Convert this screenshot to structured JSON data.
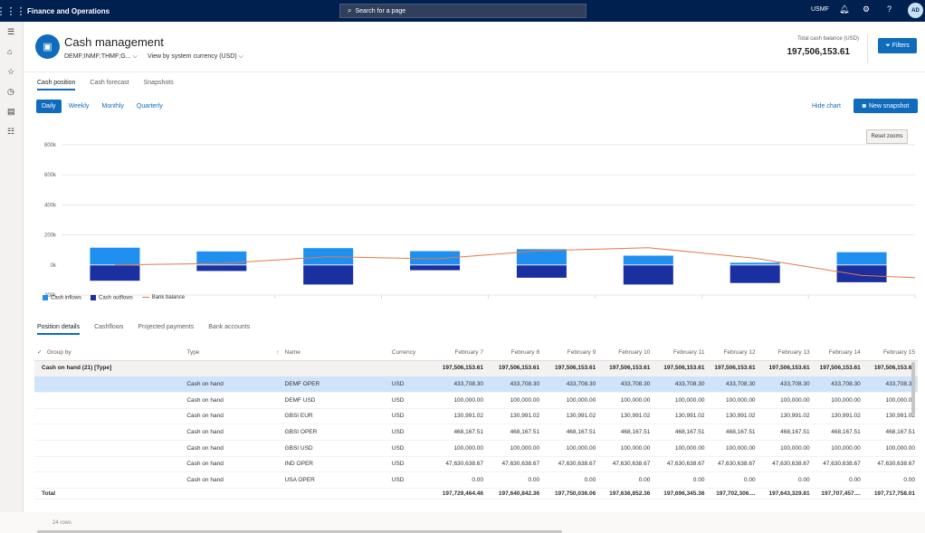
{
  "topbar": {
    "app_name": "Finance and Operations",
    "search_placeholder": "Search for a page",
    "company": "USMF",
    "avatar": "AD"
  },
  "header": {
    "title": "Cash management",
    "legal_entities": "DEMF;INMF;THMF;G...",
    "currency_view": "View by system currency (USD)",
    "total_label": "Total cash balance (USD)",
    "total_value": "197,506,153.61",
    "filters_label": "Filters"
  },
  "tabs": [
    {
      "label": "Cash position",
      "active": true
    },
    {
      "label": "Cash forecast"
    },
    {
      "label": "Snapshots"
    }
  ],
  "periods": [
    {
      "label": "Daily",
      "active": true
    },
    {
      "label": "Weekly"
    },
    {
      "label": "Monthly"
    },
    {
      "label": "Quarterly"
    }
  ],
  "hide_chart": "Hide chart",
  "new_snapshot": "New snapshot",
  "reset_zooms": "Reset zooms",
  "chart_data": {
    "type": "bar",
    "categories": [
      "February 7",
      "February 8",
      "February 9",
      "February 10",
      "February 11",
      "February 12",
      "February 13",
      "February 14"
    ],
    "ylim": [
      -200000,
      800000
    ],
    "yticks": [
      "800k",
      "600k",
      "400k",
      "200k",
      "0k",
      "-200k"
    ],
    "ytick_values": [
      800000,
      600000,
      400000,
      200000,
      0,
      -200000
    ],
    "series": [
      {
        "name": "Cash inflows",
        "color": "#1f8ff0",
        "values": [
          115000,
          90000,
          112000,
          92000,
          105000,
          62000,
          15000,
          85000
        ]
      },
      {
        "name": "Cash outflows",
        "color": "#1a2fa0",
        "values": [
          -105000,
          -40000,
          -130000,
          -35000,
          -85000,
          -130000,
          -120000,
          -115000
        ]
      },
      {
        "name": "Bank balance",
        "color": "#e3794a",
        "type": "line",
        "values": [
          0,
          10000,
          55000,
          40000,
          95000,
          115000,
          45000,
          -70000
        ]
      }
    ],
    "grid": true,
    "legend": "bottom-left"
  },
  "detail_tabs": [
    {
      "label": "Position details",
      "active": true
    },
    {
      "label": "Cashflows"
    },
    {
      "label": "Projected payments"
    },
    {
      "label": "Bank accounts"
    }
  ],
  "grid": {
    "headers": {
      "group_by": "Group by",
      "type": "Type",
      "sort": "↑",
      "name": "Name",
      "currency": "Currency",
      "dates": [
        "February 7",
        "February 8",
        "February 9",
        "February 10",
        "February 11",
        "February 12",
        "February 13",
        "February 14",
        "February 15"
      ]
    },
    "group": {
      "label": "Cash on hand (21) [Type]",
      "values": [
        "197,506,153.61",
        "197,506,153.61",
        "197,506,153.61",
        "197,506,153.61",
        "197,506,153.61",
        "197,506,153.61",
        "197,506,153.61",
        "197,506,153.61",
        "197,506,153.61"
      ]
    },
    "rows": [
      {
        "type": "Cash on hand",
        "name": "DEMF OPER",
        "currency": "USD",
        "values": [
          "433,708.30",
          "433,708.30",
          "433,708.30",
          "433,708.30",
          "433,708.30",
          "433,708.30",
          "433,708.30",
          "433,708.30",
          "433,708.30"
        ]
      },
      {
        "type": "Cash on hand",
        "name": "DEMF USD",
        "currency": "USD",
        "values": [
          "100,000.00",
          "100,000.00",
          "100,000.00",
          "100,000.00",
          "100,000.00",
          "100,000.00",
          "100,000.00",
          "100,000.00",
          "100,000.00"
        ]
      },
      {
        "type": "Cash on hand",
        "name": "GBSI EUR",
        "currency": "USD",
        "values": [
          "130,991.02",
          "130,991.02",
          "130,991.02",
          "130,991.02",
          "130,991.02",
          "130,991.02",
          "130,991.02",
          "130,991.02",
          "130,991.02"
        ]
      },
      {
        "type": "Cash on hand",
        "name": "GBSI OPER",
        "currency": "USD",
        "values": [
          "468,167.51",
          "468,167.51",
          "468,167.51",
          "468,167.51",
          "468,167.51",
          "468,167.51",
          "468,167.51",
          "468,167.51",
          "468,167.51"
        ]
      },
      {
        "type": "Cash on hand",
        "name": "GBSI USD",
        "currency": "USD",
        "values": [
          "100,000.00",
          "100,000.00",
          "100,000.00",
          "100,000.00",
          "100,000.00",
          "100,000.00",
          "100,000.00",
          "100,000.00",
          "100,000.00"
        ]
      },
      {
        "type": "Cash on hand",
        "name": "IND OPER",
        "currency": "USD",
        "values": [
          "47,630,638.67",
          "47,630,638.67",
          "47,630,638.67",
          "47,630,638.67",
          "47,630,638.67",
          "47,630,638.67",
          "47,630,638.67",
          "47,630,638.67",
          "47,630,638.67"
        ]
      },
      {
        "type": "Cash on hand",
        "name": "USA OPER",
        "currency": "USD",
        "values": [
          "0.00",
          "0.00",
          "0.00",
          "0.00",
          "0.00",
          "0.00",
          "0.00",
          "0.00",
          "0.00"
        ]
      }
    ],
    "total": {
      "label": "Total",
      "rows": "24 rows",
      "values": [
        "197,729,464.46",
        "197,640,842.36",
        "197,750,036.06",
        "197,636,852.36",
        "197,696,345.36",
        "197,702,306....",
        "197,643,329.81",
        "197,707,457....",
        "197,717,758.01"
      ]
    }
  }
}
